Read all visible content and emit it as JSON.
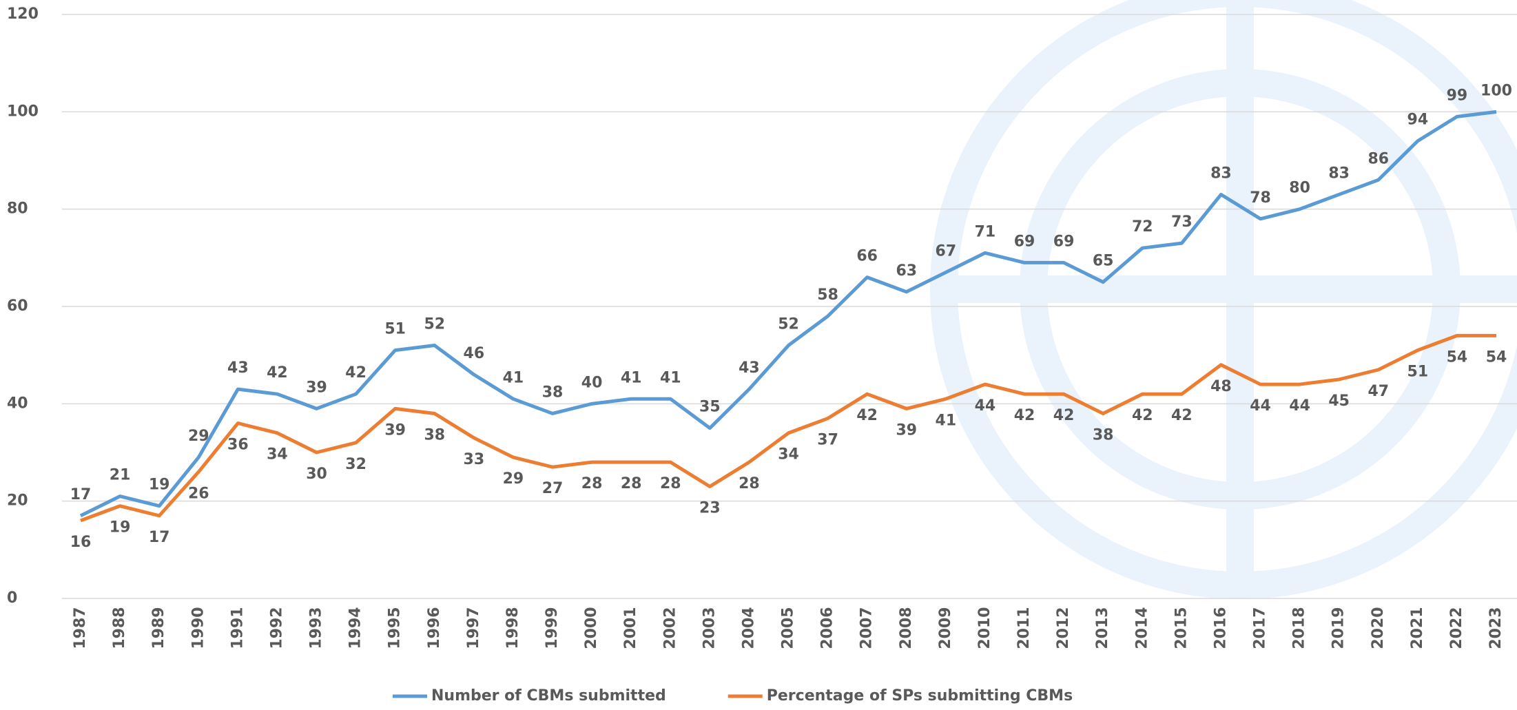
{
  "chart_data": {
    "type": "line",
    "categories": [
      "1987",
      "1988",
      "1989",
      "1990",
      "1991",
      "1992",
      "1993",
      "1994",
      "1995",
      "1996",
      "1997",
      "1998",
      "1999",
      "2000",
      "2001",
      "2002",
      "2003",
      "2004",
      "2005",
      "2006",
      "2007",
      "2008",
      "2009",
      "2010",
      "2011",
      "2012",
      "2013",
      "2014",
      "2015",
      "2016",
      "2017",
      "2018",
      "2019",
      "2020",
      "2021",
      "2022",
      "2023"
    ],
    "series": [
      {
        "name": "Number of CBMs submitted",
        "color": "#5b9bd5",
        "label_side": "above",
        "values": [
          17,
          21,
          19,
          29,
          43,
          42,
          39,
          42,
          51,
          52,
          46,
          41,
          38,
          40,
          41,
          41,
          35,
          43,
          52,
          58,
          66,
          63,
          67,
          71,
          69,
          69,
          65,
          72,
          73,
          83,
          78,
          80,
          83,
          86,
          94,
          99,
          100
        ]
      },
      {
        "name": "Percentage of SPs submitting CBMs",
        "color": "#ed7d31",
        "label_side": "below",
        "values": [
          16,
          19,
          17,
          26,
          36,
          34,
          30,
          32,
          39,
          38,
          33,
          29,
          27,
          28,
          28,
          28,
          23,
          28,
          34,
          37,
          42,
          39,
          41,
          44,
          42,
          42,
          38,
          42,
          42,
          48,
          44,
          44,
          45,
          47,
          51,
          54,
          54
        ]
      }
    ],
    "ylim": [
      0,
      120
    ],
    "yticks": [
      0,
      20,
      40,
      60,
      80,
      100,
      120
    ],
    "grid": true,
    "legend": "bottom"
  }
}
